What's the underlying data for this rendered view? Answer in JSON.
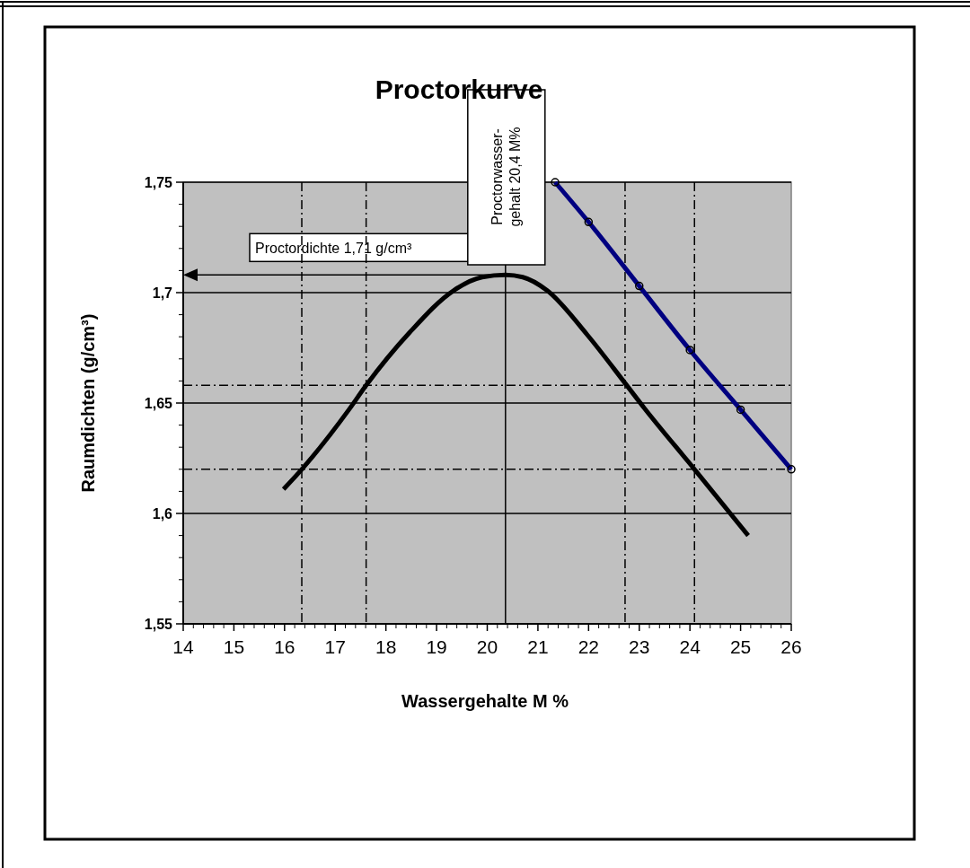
{
  "chart_data": {
    "type": "line",
    "title": "Proctorkurve",
    "xlabel": "Wassergehalte M %",
    "ylabel": "Raumdichten (g/cm³)",
    "xlim": [
      14,
      26
    ],
    "xticks": [
      14,
      15,
      16,
      17,
      18,
      19,
      20,
      21,
      22,
      23,
      24,
      25,
      26
    ],
    "ylim": [
      1.55,
      1.75
    ],
    "yticks": [
      {
        "value": 1.55,
        "label": "1,55"
      },
      {
        "value": 1.6,
        "label": "1,6"
      },
      {
        "value": 1.65,
        "label": "1,65"
      },
      {
        "value": 1.7,
        "label": "1,7"
      },
      {
        "value": 1.75,
        "label": "1,75"
      }
    ],
    "grid": "y",
    "line_style": "solid",
    "series": [
      {
        "color": "#000000",
        "marker": "none",
        "x": [
          15.98,
          16.34,
          17.27,
          17.61,
          18.47,
          19.34,
          19.9,
          20.36,
          20.7,
          21.18,
          21.97,
          22.72,
          23.09,
          24.09,
          25.15
        ],
        "values": [
          1.611,
          1.62,
          1.647,
          1.658,
          1.682,
          1.701,
          1.707,
          1.708,
          1.707,
          1.701,
          1.681,
          1.659,
          1.648,
          1.62,
          1.59
        ]
      },
      {
        "color": "#000080",
        "marker": "circle",
        "x": [
          21.34,
          22,
          23,
          24,
          25,
          26
        ],
        "values": [
          1.75,
          1.732,
          1.703,
          1.674,
          1.647,
          1.62
        ]
      }
    ],
    "ref_lines": [
      {
        "axis": "y",
        "value": 1.708,
        "label": "Proctordichte 1,71 g/cm³",
        "color": "#000000",
        "line_style": "solid"
      },
      {
        "axis": "x",
        "value": 20.36,
        "label": "Proctorwasser-\ngehalt 20,4  M%",
        "color": "#000000",
        "line_style": "solid"
      },
      {
        "axis": "y",
        "value": 1.658,
        "color": "#000000",
        "line_style": "dashed"
      },
      {
        "axis": "y",
        "value": 1.62,
        "color": "#000000",
        "line_style": "dashed"
      },
      {
        "axis": "x",
        "value": 16.34,
        "color": "#000000",
        "line_style": "dashed"
      },
      {
        "axis": "x",
        "value": 17.61,
        "color": "#000000",
        "line_style": "dashed"
      },
      {
        "axis": "x",
        "value": 22.72,
        "color": "#000000",
        "line_style": "dashed"
      },
      {
        "axis": "x",
        "value": 24.09,
        "color": "#000000",
        "line_style": "dashed"
      }
    ]
  }
}
